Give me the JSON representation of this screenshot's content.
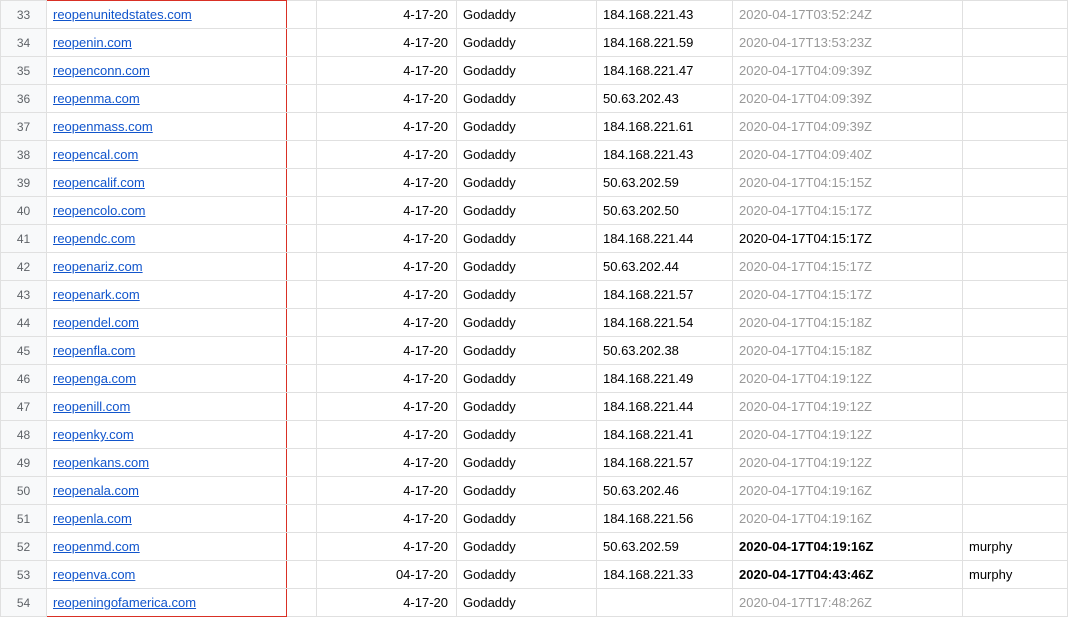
{
  "colors": {
    "link": "#1155cc",
    "muted": "#999999",
    "border": "#e0e0e0",
    "header_bg": "#f8f9fa",
    "header_text": "#5f6368",
    "redbox": "#d93025",
    "text": "#000000",
    "background": "#ffffff"
  },
  "columns": [
    "row_number",
    "domain",
    "spacer",
    "date",
    "registrar",
    "ip",
    "timestamp",
    "note"
  ],
  "timestamp_styles": {
    "muted": "#999999",
    "bold": "#000000 bold",
    "normal": "#000000"
  },
  "rows": [
    {
      "n": "33",
      "domain": "reopenunitedstates.com",
      "date": "4-17-20",
      "registrar": "Godaddy",
      "ip": "184.168.221.43",
      "ts": "2020-04-17T03:52:24Z",
      "ts_style": "muted",
      "note": "",
      "redtop": true
    },
    {
      "n": "34",
      "domain": "reopenin.com",
      "date": "4-17-20",
      "registrar": "Godaddy",
      "ip": "184.168.221.59",
      "ts": "2020-04-17T13:53:23Z",
      "ts_style": "muted",
      "note": ""
    },
    {
      "n": "35",
      "domain": "reopenconn.com",
      "date": "4-17-20",
      "registrar": "Godaddy",
      "ip": "184.168.221.47",
      "ts": "2020-04-17T04:09:39Z",
      "ts_style": "muted",
      "note": ""
    },
    {
      "n": "36",
      "domain": "reopenma.com",
      "date": "4-17-20",
      "registrar": "Godaddy",
      "ip": "50.63.202.43",
      "ts": "2020-04-17T04:09:39Z",
      "ts_style": "muted",
      "note": ""
    },
    {
      "n": "37",
      "domain": "reopenmass.com",
      "date": "4-17-20",
      "registrar": "Godaddy",
      "ip": "184.168.221.61",
      "ts": "2020-04-17T04:09:39Z",
      "ts_style": "muted",
      "note": ""
    },
    {
      "n": "38",
      "domain": "reopencal.com",
      "date": "4-17-20",
      "registrar": "Godaddy",
      "ip": "184.168.221.43",
      "ts": "2020-04-17T04:09:40Z",
      "ts_style": "muted",
      "note": ""
    },
    {
      "n": "39",
      "domain": "reopencalif.com",
      "date": "4-17-20",
      "registrar": "Godaddy",
      "ip": "50.63.202.59",
      "ts": "2020-04-17T04:15:15Z",
      "ts_style": "muted",
      "note": ""
    },
    {
      "n": "40",
      "domain": "reopencolo.com",
      "date": "4-17-20",
      "registrar": "Godaddy",
      "ip": "50.63.202.50",
      "ts": "2020-04-17T04:15:17Z",
      "ts_style": "muted",
      "note": ""
    },
    {
      "n": "41",
      "domain": "reopendc.com",
      "date": "4-17-20",
      "registrar": "Godaddy",
      "ip": "184.168.221.44",
      "ts": "2020-04-17T04:15:17Z",
      "ts_style": "normal",
      "note": ""
    },
    {
      "n": "42",
      "domain": "reopenariz.com",
      "date": "4-17-20",
      "registrar": "Godaddy",
      "ip": "50.63.202.44",
      "ts": "2020-04-17T04:15:17Z",
      "ts_style": "muted",
      "note": ""
    },
    {
      "n": "43",
      "domain": "reopenark.com",
      "date": "4-17-20",
      "registrar": "Godaddy",
      "ip": "184.168.221.57",
      "ts": "2020-04-17T04:15:17Z",
      "ts_style": "muted",
      "note": ""
    },
    {
      "n": "44",
      "domain": "reopendel.com",
      "date": "4-17-20",
      "registrar": "Godaddy",
      "ip": "184.168.221.54",
      "ts": "2020-04-17T04:15:18Z",
      "ts_style": "muted",
      "note": ""
    },
    {
      "n": "45",
      "domain": "reopenfla.com",
      "date": "4-17-20",
      "registrar": "Godaddy",
      "ip": "50.63.202.38",
      "ts": "2020-04-17T04:15:18Z",
      "ts_style": "muted",
      "note": ""
    },
    {
      "n": "46",
      "domain": "reopenga.com",
      "date": "4-17-20",
      "registrar": "Godaddy",
      "ip": "184.168.221.49",
      "ts": "2020-04-17T04:19:12Z",
      "ts_style": "muted",
      "note": ""
    },
    {
      "n": "47",
      "domain": "reopenill.com",
      "date": "4-17-20",
      "registrar": "Godaddy",
      "ip": "184.168.221.44",
      "ts": "2020-04-17T04:19:12Z",
      "ts_style": "muted",
      "note": ""
    },
    {
      "n": "48",
      "domain": "reopenky.com",
      "date": "4-17-20",
      "registrar": "Godaddy",
      "ip": "184.168.221.41",
      "ts": "2020-04-17T04:19:12Z",
      "ts_style": "muted",
      "note": ""
    },
    {
      "n": "49",
      "domain": "reopenkans.com",
      "date": "4-17-20",
      "registrar": "Godaddy",
      "ip": "184.168.221.57",
      "ts": "2020-04-17T04:19:12Z",
      "ts_style": "muted",
      "note": ""
    },
    {
      "n": "50",
      "domain": "reopenala.com",
      "date": "4-17-20",
      "registrar": "Godaddy",
      "ip": "50.63.202.46",
      "ts": "2020-04-17T04:19:16Z",
      "ts_style": "muted",
      "note": ""
    },
    {
      "n": "51",
      "domain": "reopenla.com",
      "date": "4-17-20",
      "registrar": "Godaddy",
      "ip": "184.168.221.56",
      "ts": "2020-04-17T04:19:16Z",
      "ts_style": "muted",
      "note": ""
    },
    {
      "n": "52",
      "domain": "reopenmd.com",
      "date": "4-17-20",
      "registrar": "Godaddy",
      "ip": "50.63.202.59",
      "ts": "2020-04-17T04:19:16Z",
      "ts_style": "bold",
      "note": "murphy"
    },
    {
      "n": "53",
      "domain": "reopenva.com",
      "date": "04-17-20",
      "registrar": "Godaddy",
      "ip": "184.168.221.33",
      "ts": "2020-04-17T04:43:46Z",
      "ts_style": "bold",
      "note": "murphy"
    },
    {
      "n": "54",
      "domain": "reopeningofamerica.com",
      "date": "4-17-20",
      "registrar": "Godaddy",
      "ip": "",
      "ts": "2020-04-17T17:48:26Z",
      "ts_style": "muted",
      "note": "",
      "redbottom": true
    }
  ]
}
